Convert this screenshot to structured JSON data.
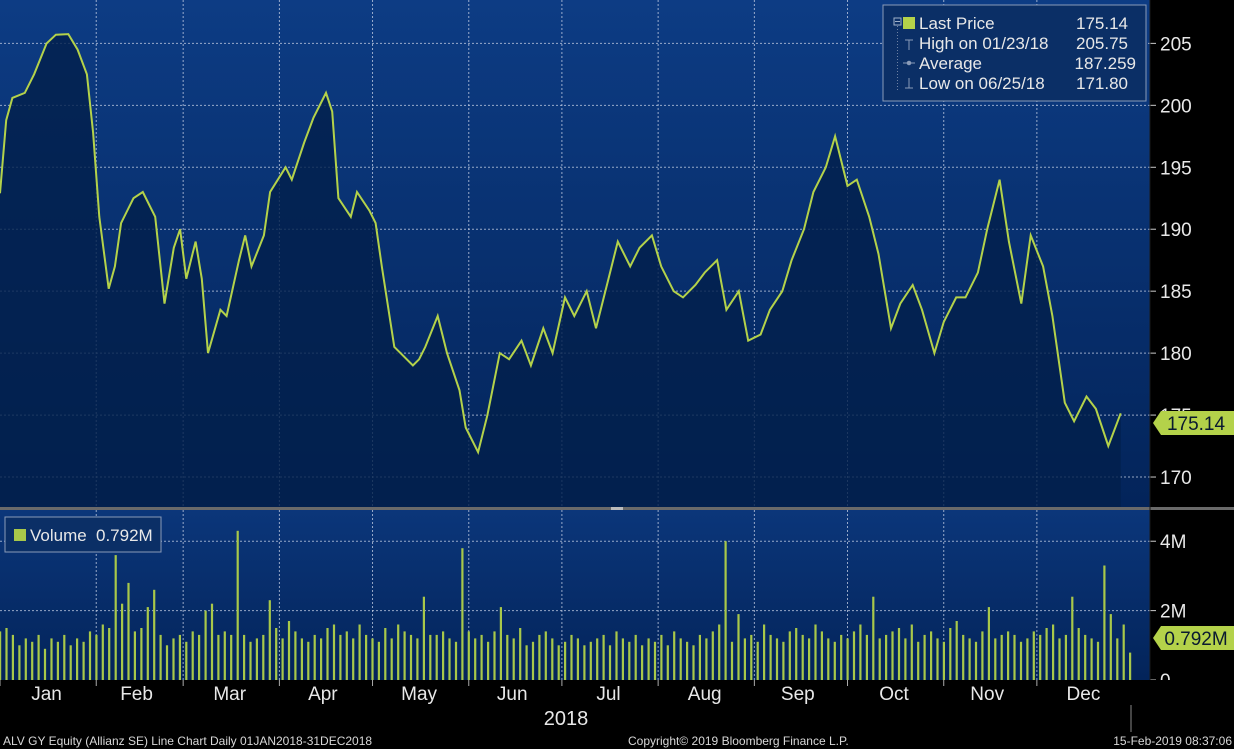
{
  "legend_price": {
    "last_price_label": "Last Price",
    "last_price_value": "175.14",
    "high_label": "High on 01/23/18",
    "high_value": "205.75",
    "average_label": "Average",
    "average_value": "187.259",
    "low_label": "Low on 06/25/18",
    "low_value": "171.80"
  },
  "legend_volume": {
    "label": "Volume",
    "value": "0.792M"
  },
  "price_tag": "175.14",
  "volume_tag": "0.792M",
  "footer": {
    "left": "ALV GY Equity (Allianz SE) Line Chart  Daily 01JAN2018-31DEC2018",
    "center": "Copyright© 2019 Bloomberg Finance L.P.",
    "right": "15-Feb-2019 08:37:06"
  },
  "colors": {
    "line": "#b4d24a",
    "volume": "#a8c84a",
    "bg_top": "#0d3c84",
    "bg_bottom": "#021e4a"
  },
  "chart_data": [
    {
      "type": "line",
      "name": "ALV GY Equity (Allianz SE) Last Price",
      "ylim": [
        167.5,
        208.5
      ],
      "yticks": [
        170,
        175,
        180,
        185,
        190,
        195,
        200,
        205
      ],
      "x_labels": [
        "Jan",
        "Feb",
        "Mar",
        "Apr",
        "May",
        "Jun",
        "Jul",
        "Aug",
        "Sep",
        "Oct",
        "Nov",
        "Dec"
      ],
      "x_axis_title": "2018",
      "grid": true,
      "legend_position": "top-right",
      "x": [
        "2018-01-01",
        "2018-01-03",
        "2018-01-05",
        "2018-01-09",
        "2018-01-12",
        "2018-01-16",
        "2018-01-19",
        "2018-01-23",
        "2018-01-26",
        "2018-01-29",
        "2018-01-31",
        "2018-02-02",
        "2018-02-05",
        "2018-02-07",
        "2018-02-09",
        "2018-02-13",
        "2018-02-16",
        "2018-02-20",
        "2018-02-23",
        "2018-02-26",
        "2018-02-28",
        "2018-03-02",
        "2018-03-05",
        "2018-03-07",
        "2018-03-09",
        "2018-03-13",
        "2018-03-15",
        "2018-03-19",
        "2018-03-21",
        "2018-03-23",
        "2018-03-27",
        "2018-03-29",
        "2018-04-03",
        "2018-04-05",
        "2018-04-09",
        "2018-04-12",
        "2018-04-16",
        "2018-04-18",
        "2018-04-20",
        "2018-04-24",
        "2018-04-26",
        "2018-04-30",
        "2018-05-02",
        "2018-05-04",
        "2018-05-08",
        "2018-05-10",
        "2018-05-14",
        "2018-05-16",
        "2018-05-18",
        "2018-05-22",
        "2018-05-25",
        "2018-05-29",
        "2018-05-31",
        "2018-06-04",
        "2018-06-07",
        "2018-06-11",
        "2018-06-14",
        "2018-06-18",
        "2018-06-21",
        "2018-06-25",
        "2018-06-28",
        "2018-07-02",
        "2018-07-05",
        "2018-07-09",
        "2018-07-12",
        "2018-07-16",
        "2018-07-19",
        "2018-07-23",
        "2018-07-26",
        "2018-07-30",
        "2018-08-02",
        "2018-08-06",
        "2018-08-09",
        "2018-08-13",
        "2018-08-16",
        "2018-08-20",
        "2018-08-23",
        "2018-08-27",
        "2018-08-30",
        "2018-09-03",
        "2018-09-06",
        "2018-09-10",
        "2018-09-13",
        "2018-09-17",
        "2018-09-20",
        "2018-09-24",
        "2018-09-27",
        "2018-10-01",
        "2018-10-04",
        "2018-10-08",
        "2018-10-11",
        "2018-10-15",
        "2018-10-18",
        "2018-10-22",
        "2018-10-25",
        "2018-10-29",
        "2018-11-01",
        "2018-11-05",
        "2018-11-08",
        "2018-11-12",
        "2018-11-15",
        "2018-11-19",
        "2018-11-22",
        "2018-11-26",
        "2018-11-29",
        "2018-12-03",
        "2018-12-06",
        "2018-12-10",
        "2018-12-13",
        "2018-12-17",
        "2018-12-20",
        "2018-12-24",
        "2018-12-28"
      ],
      "y": [
        192.9,
        198.8,
        200.6,
        201.0,
        202.5,
        205.0,
        205.7,
        205.75,
        204.5,
        202.5,
        197.8,
        191.0,
        185.2,
        187.0,
        190.5,
        192.5,
        193.0,
        191.0,
        184.0,
        188.5,
        190.0,
        186.0,
        189.0,
        186.0,
        180.0,
        183.5,
        183.0,
        187.5,
        189.5,
        187.0,
        189.5,
        193.0,
        195.0,
        194.0,
        197.0,
        199.0,
        201.0,
        199.5,
        192.5,
        191.0,
        193.0,
        191.5,
        190.5,
        187.0,
        180.5,
        180.0,
        179.0,
        179.5,
        180.5,
        183.0,
        180.0,
        177.0,
        174.0,
        172.0,
        175.0,
        180.0,
        179.5,
        181.0,
        179.0,
        182.0,
        180.0,
        184.5,
        183.0,
        185.0,
        182.0,
        186.0,
        189.0,
        187.0,
        188.5,
        189.5,
        187.0,
        185.0,
        184.5,
        185.5,
        186.5,
        187.5,
        183.5,
        185.0,
        181.0,
        181.5,
        183.5,
        185.0,
        187.5,
        190.0,
        193.0,
        195.0,
        197.5,
        193.5,
        194.0,
        191.0,
        188.0,
        182.0,
        184.0,
        185.5,
        183.5,
        180.0,
        182.5,
        184.5,
        184.5,
        186.5,
        190.0,
        194.0,
        189.0,
        184.0,
        189.5,
        187.0,
        183.0,
        176.0,
        174.5,
        176.5,
        175.5,
        172.5,
        175.14
      ]
    },
    {
      "type": "bar",
      "name": "Volume",
      "ylim": [
        0,
        4.9
      ],
      "yticks": [
        0,
        2,
        4
      ],
      "ytick_labels": [
        "0",
        "2M",
        "4M"
      ],
      "unit": "M",
      "x_start": "2018-01-01",
      "x_end": "2018-12-31",
      "values": [
        1.4,
        1.5,
        1.3,
        1.0,
        1.2,
        1.1,
        1.3,
        0.9,
        1.2,
        1.1,
        1.3,
        1.0,
        1.2,
        1.1,
        1.4,
        1.3,
        1.6,
        1.5,
        3.6,
        2.2,
        2.8,
        1.4,
        1.5,
        2.1,
        2.6,
        1.3,
        1.0,
        1.2,
        1.3,
        1.1,
        1.4,
        1.3,
        2.0,
        2.2,
        1.3,
        1.4,
        1.3,
        4.3,
        1.3,
        1.1,
        1.2,
        1.3,
        2.3,
        1.5,
        1.2,
        1.7,
        1.4,
        1.2,
        1.1,
        1.3,
        1.2,
        1.5,
        1.6,
        1.3,
        1.4,
        1.2,
        1.6,
        1.3,
        1.2,
        1.1,
        1.5,
        1.2,
        1.6,
        1.4,
        1.3,
        1.2,
        2.4,
        1.3,
        1.3,
        1.4,
        1.2,
        1.1,
        3.8,
        1.4,
        1.2,
        1.3,
        1.1,
        1.4,
        2.1,
        1.3,
        1.2,
        1.5,
        1.0,
        1.1,
        1.3,
        1.4,
        1.2,
        1.0,
        1.1,
        1.3,
        1.2,
        1.0,
        1.1,
        1.2,
        1.3,
        1.0,
        1.4,
        1.2,
        1.1,
        1.3,
        1.0,
        1.2,
        1.1,
        1.3,
        1.0,
        1.4,
        1.2,
        1.1,
        1.0,
        1.3,
        1.2,
        1.4,
        1.6,
        4.0,
        1.1,
        1.9,
        1.2,
        1.3,
        1.1,
        1.6,
        1.3,
        1.2,
        1.1,
        1.4,
        1.5,
        1.3,
        1.2,
        1.6,
        1.4,
        1.2,
        1.1,
        1.3,
        1.2,
        1.4,
        1.6,
        1.3,
        2.4,
        1.2,
        1.3,
        1.4,
        1.5,
        1.2,
        1.6,
        1.1,
        1.3,
        1.4,
        1.2,
        1.1,
        1.5,
        1.7,
        1.3,
        1.2,
        1.1,
        1.4,
        2.1,
        1.2,
        1.3,
        1.4,
        1.3,
        1.1,
        1.2,
        1.4,
        1.3,
        1.5,
        1.6,
        1.2,
        1.3,
        2.4,
        1.5,
        1.3,
        1.2,
        1.1,
        3.3,
        1.9,
        1.2,
        1.6,
        0.79
      ]
    }
  ]
}
